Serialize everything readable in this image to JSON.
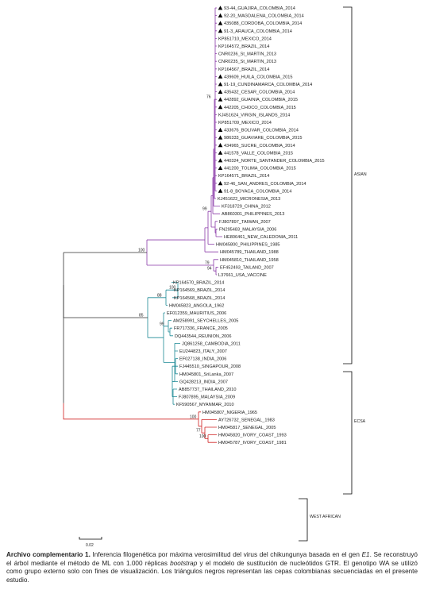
{
  "colors": {
    "asian": "#8a3aa8",
    "ecsa": "#1f8a96",
    "west_african": "#d02020",
    "root": "#333333",
    "marker": "#000000"
  },
  "marker_icon": "black-triangle-icon",
  "scale_bar": {
    "label": "0.02"
  },
  "clades": [
    {
      "name": "ASIAN"
    },
    {
      "name": "ECSA"
    },
    {
      "name": "WEST AFRICAN"
    }
  ],
  "leaves": [
    {
      "label": "93-44_GUAJIRA_COLOMBIA_2014",
      "marked": true
    },
    {
      "label": "92-20_MAGDALENA_COLOMBIA_2014",
      "marked": true
    },
    {
      "label": "435088_CORDOBA_COLOMBIA_2014",
      "marked": true
    },
    {
      "label": "91-3_ARAUCA_COLOMBIA_2014",
      "marked": true
    },
    {
      "label": "KP851710_MEXICO_2014",
      "marked": false
    },
    {
      "label": "KP164572_BRAZIL_2014",
      "marked": false
    },
    {
      "label": "CNR0236_St_MARTIN_2013",
      "marked": false
    },
    {
      "label": "CNR0235_St_MARTIN_2013",
      "marked": false
    },
    {
      "label": "KP164567_BRAZIL_2014",
      "marked": false
    },
    {
      "label": "439609_HUILA_COLOMBIA_2015",
      "marked": true
    },
    {
      "label": "91-19_CUNDINAMARCA_COLOMBIA_2014",
      "marked": true
    },
    {
      "label": "435432_CESAR_COLOMBIA_2014",
      "marked": true
    },
    {
      "label": "442892_GUAINIA_COLOMBIA_2015",
      "marked": true
    },
    {
      "label": "442205_CHOCO_COLOMBIA_2015",
      "marked": true
    },
    {
      "label": "KJ451624_VIRGIN_ISLANDS_2014",
      "marked": false
    },
    {
      "label": "KP851709_MEXICO_2014",
      "marked": false
    },
    {
      "label": "433676_BOLIVAR_COLOMBIA_2014",
      "marked": true
    },
    {
      "label": "986333_GUAVIARE_COLOMBIA_2015",
      "marked": true
    },
    {
      "label": "434965_SUCRE_COLOMBIA_2014",
      "marked": true
    },
    {
      "label": "441578_VALLE_COLOMBIA_2015",
      "marked": true
    },
    {
      "label": "440324_NORTE_SANTANDER_COLOMBIA_2015",
      "marked": true
    },
    {
      "label": "441200_TOLIMA_COLOMBIA_2015",
      "marked": true
    },
    {
      "label": "KP164571_BRAZIL_2014",
      "marked": false
    },
    {
      "label": "92-46_SAN_ANDRES_COLOMBIA_2014",
      "marked": true
    },
    {
      "label": "91-8_BOYACA_COLOMBIA_2014",
      "marked": true
    },
    {
      "label": "KJ451622_MICRONESIA_2013",
      "marked": false
    },
    {
      "label": "KF318729_CHINA_2012",
      "marked": false
    },
    {
      "label": "AB860301_PHILIPPINES_2013",
      "marked": false
    },
    {
      "label": "FJ807897_TAIWAN_2007",
      "marked": false
    },
    {
      "label": "FN295483_MALAYSIA_2006",
      "marked": false
    },
    {
      "label": "HE806461_NEW_CALEDONIA_2011",
      "marked": false
    },
    {
      "label": "HM045800_PHILIPPINES_1985",
      "marked": false
    },
    {
      "label": "HM045789_THAILAND_1988",
      "marked": false
    },
    {
      "label": "HM045810_THAILAND_1958",
      "marked": false
    },
    {
      "label": "EF452493_TAILAND_2007",
      "marked": false
    },
    {
      "label": "L37661_USA_VACCINE",
      "marked": false
    },
    {
      "label": "KP164570_BRAZIL_2014",
      "marked": false
    },
    {
      "label": "KP164569_BRAZIL_2014",
      "marked": false
    },
    {
      "label": "KP164568_BRAZIL_2014",
      "marked": false
    },
    {
      "label": "HM045823_ANGOLA_1962",
      "marked": false
    },
    {
      "label": "EF012359_MAURITIUS_2006",
      "marked": false
    },
    {
      "label": "AM258991_SEYCHELLES_2005",
      "marked": false
    },
    {
      "label": "FR717336_FRANCE_2005",
      "marked": false
    },
    {
      "label": "DQ443544_REUNION_2006",
      "marked": false
    },
    {
      "label": "JQ861258_CAMBODIA_2011",
      "marked": false
    },
    {
      "label": "EU244823_ITALY_2007",
      "marked": false
    },
    {
      "label": "EF027138_INDIA_2006",
      "marked": false
    },
    {
      "label": "FJ445510_SINGAPOUR_2008",
      "marked": false
    },
    {
      "label": "HM045801_SriLanka_2007",
      "marked": false
    },
    {
      "label": "GQ428213_INDIA_2007",
      "marked": false
    },
    {
      "label": "AB857737_THAILAND_2010",
      "marked": false
    },
    {
      "label": "FJ807895_MALAYSIA_2009",
      "marked": false
    },
    {
      "label": "KF590567_MYANMAR_2010",
      "marked": false
    },
    {
      "label": "HM045807_NIGERIA_1965",
      "marked": false
    },
    {
      "label": "AY726732_SENEGAL_1983",
      "marked": false
    },
    {
      "label": "HM045817_SENEGAL_2005",
      "marked": false
    },
    {
      "label": "HM045820_IVORY_COAST_1993",
      "marked": false
    },
    {
      "label": "HM045787_IVORY_COAST_1981",
      "marked": false
    }
  ],
  "bootstrap": {
    "colombia_cluster": "76",
    "philippines_2013": "99",
    "asian": "100",
    "thai_pair": "79",
    "vaccine_pair": "94",
    "brazil_pair": "100",
    "brazil_angola": "88",
    "ecsa": "85",
    "ioi": "99",
    "west_african": "100",
    "senegal_ivory": "77",
    "ivory_coast": "100"
  },
  "caption": {
    "title": "Archivo complementario 1.",
    "part1": " Inferencia filogenética por máxima verosimilitud del virus del chikungunya basada en el gen ",
    "gene": "E1",
    "part2": ". Se reconstruyó el árbol mediante el método de ML con 1.000 réplicas ",
    "bootstrap_word": "bootstrap",
    "part3": " y el modelo de sustitución de nucleótidos GTR. El genotipo WA se utilizó como grupo externo solo con fines de visualización. Los triángulos negros representan las cepas colombianas secuenciadas en el presente estudio."
  }
}
